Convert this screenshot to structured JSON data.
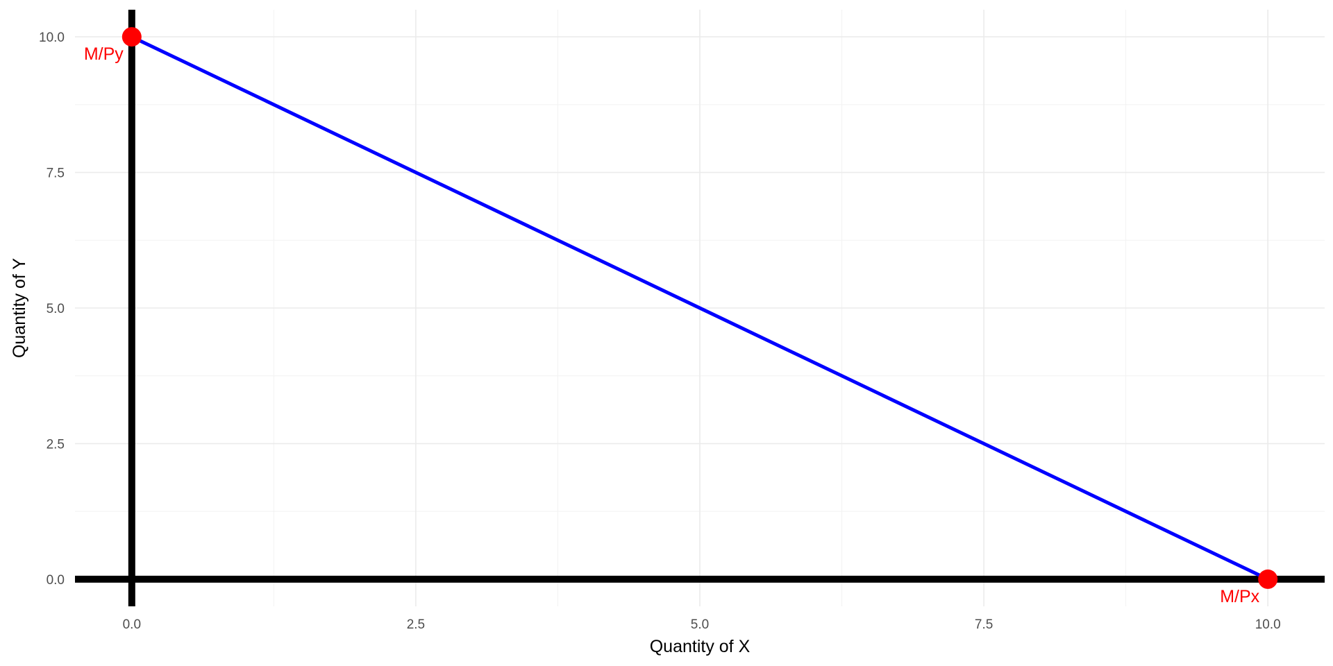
{
  "chart_data": {
    "type": "line",
    "xlabel": "Quantity of X",
    "ylabel": "Quantity of Y",
    "xlim": [
      -0.5,
      10.5
    ],
    "ylim": [
      -0.5,
      10.5
    ],
    "x_ticks": [
      0.0,
      2.5,
      5.0,
      7.5,
      10.0
    ],
    "x_tick_labels": [
      "0.0",
      "2.5",
      "5.0",
      "7.5",
      "10.0"
    ],
    "y_ticks": [
      0.0,
      2.5,
      5.0,
      7.5,
      10.0
    ],
    "y_tick_labels": [
      "0.0",
      "2.5",
      "5.0",
      "7.5",
      "10.0"
    ],
    "grid": true,
    "series": [
      {
        "color": "#0000ff",
        "x": [
          0,
          10
        ],
        "y": [
          10,
          0
        ]
      }
    ],
    "points": [
      {
        "x": 0,
        "y": 10,
        "label": "M/Py",
        "color": "#ff0000"
      },
      {
        "x": 10,
        "y": 0,
        "label": "M/Px",
        "color": "#ff0000"
      }
    ],
    "reference_lines": [
      {
        "axis": "x",
        "value": 0,
        "color": "#000000"
      },
      {
        "axis": "y",
        "value": 0,
        "color": "#000000"
      }
    ]
  }
}
